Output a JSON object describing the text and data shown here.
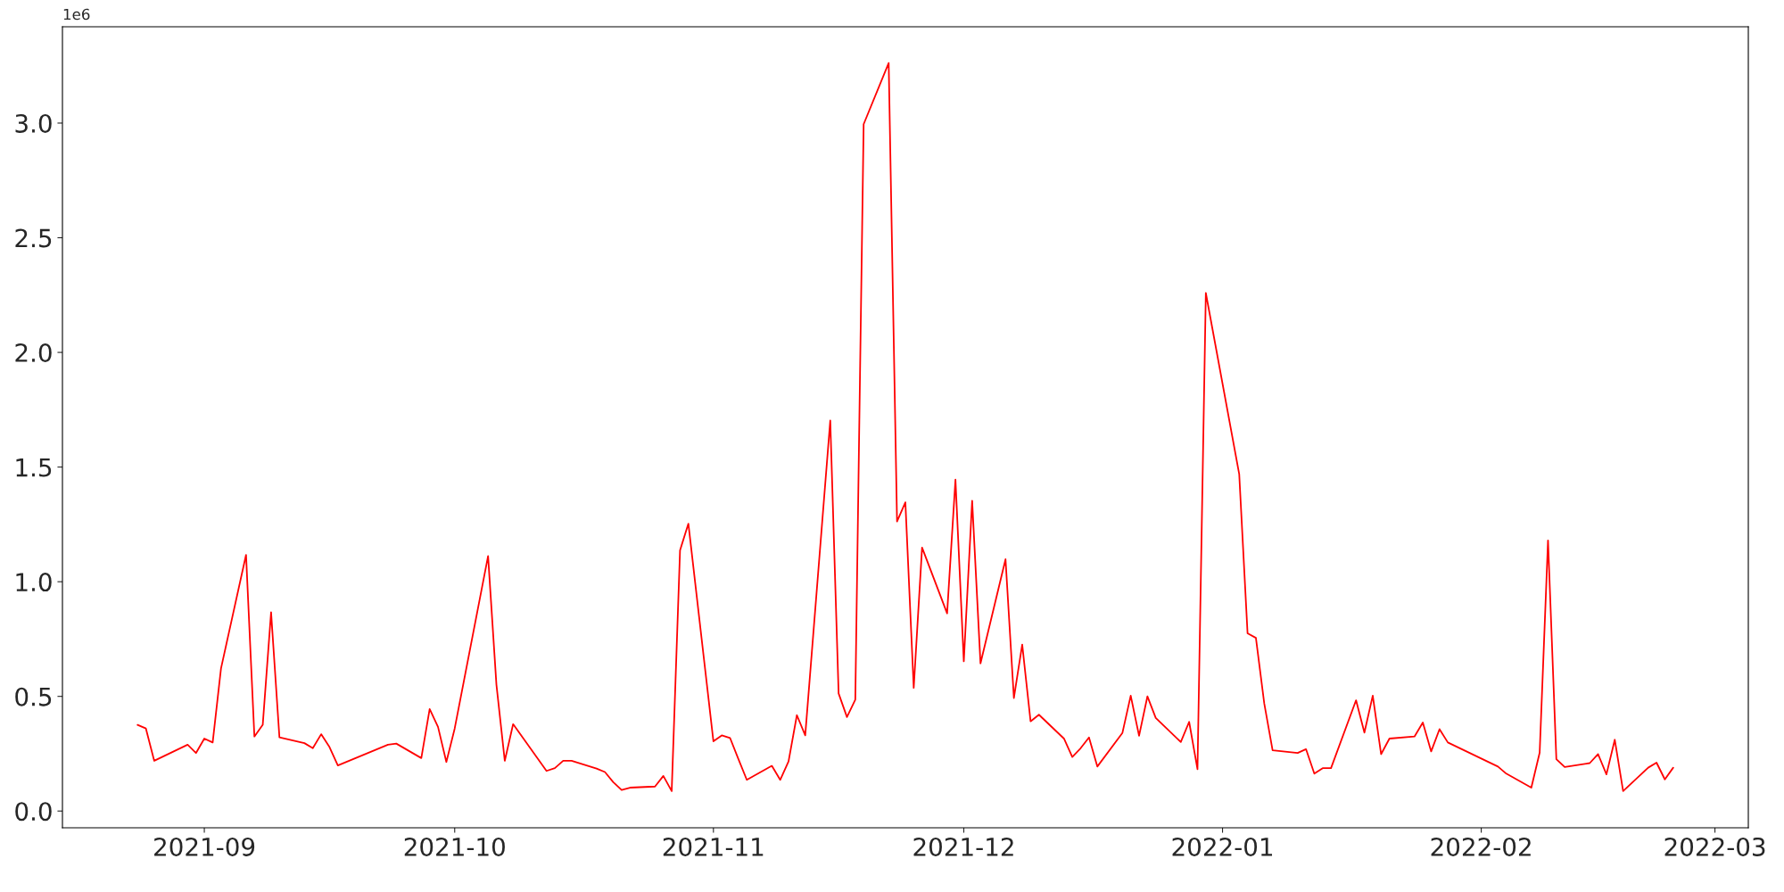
{
  "chart_data": {
    "type": "line",
    "annotations": [
      "1e6"
    ],
    "x": [
      "2021-08-24",
      "2021-08-25",
      "2021-08-26",
      "2021-08-30",
      "2021-08-31",
      "2021-09-01",
      "2021-09-02",
      "2021-09-03",
      "2021-09-06",
      "2021-09-07",
      "2021-09-08",
      "2021-09-09",
      "2021-09-10",
      "2021-09-13",
      "2021-09-14",
      "2021-09-15",
      "2021-09-16",
      "2021-09-17",
      "2021-09-23",
      "2021-09-24",
      "2021-09-27",
      "2021-09-28",
      "2021-09-29",
      "2021-09-30",
      "2021-10-01",
      "2021-10-05",
      "2021-10-06",
      "2021-10-07",
      "2021-10-08",
      "2021-10-12",
      "2021-10-13",
      "2021-10-14",
      "2021-10-15",
      "2021-10-18",
      "2021-10-19",
      "2021-10-20",
      "2021-10-21",
      "2021-10-22",
      "2021-10-25",
      "2021-10-26",
      "2021-10-27",
      "2021-10-28",
      "2021-10-29",
      "2021-11-01",
      "2021-11-02",
      "2021-11-03",
      "2021-11-04",
      "2021-11-05",
      "2021-11-08",
      "2021-11-09",
      "2021-11-10",
      "2021-11-11",
      "2021-11-12",
      "2021-11-15",
      "2021-11-16",
      "2021-11-17",
      "2021-11-18",
      "2021-11-19",
      "2021-11-22",
      "2021-11-23",
      "2021-11-24",
      "2021-11-25",
      "2021-11-26",
      "2021-11-29",
      "2021-11-30",
      "2021-12-01",
      "2021-12-02",
      "2021-12-03",
      "2021-12-06",
      "2021-12-07",
      "2021-12-08",
      "2021-12-09",
      "2021-12-10",
      "2021-12-13",
      "2021-12-14",
      "2021-12-15",
      "2021-12-16",
      "2021-12-17",
      "2021-12-20",
      "2021-12-21",
      "2021-12-22",
      "2021-12-23",
      "2021-12-24",
      "2021-12-27",
      "2021-12-28",
      "2021-12-29",
      "2021-12-30",
      "2022-01-03",
      "2022-01-04",
      "2022-01-05",
      "2022-01-06",
      "2022-01-07",
      "2022-01-10",
      "2022-01-11",
      "2022-01-12",
      "2022-01-13",
      "2022-01-14",
      "2022-01-17",
      "2022-01-18",
      "2022-01-19",
      "2022-01-20",
      "2022-01-21",
      "2022-01-24",
      "2022-01-25",
      "2022-01-26",
      "2022-01-27",
      "2022-01-28",
      "2022-02-03",
      "2022-02-04",
      "2022-02-07",
      "2022-02-08",
      "2022-02-09",
      "2022-02-10",
      "2022-02-11",
      "2022-02-14",
      "2022-02-15",
      "2022-02-16",
      "2022-02-17",
      "2022-02-18",
      "2022-02-21",
      "2022-02-22",
      "2022-02-23",
      "2022-02-24"
    ],
    "series": [
      {
        "color": "#ff0000",
        "values": [
          0.376,
          0.36,
          0.219,
          0.289,
          0.253,
          0.316,
          0.299,
          0.622,
          1.117,
          0.325,
          0.376,
          0.867,
          0.321,
          0.296,
          0.274,
          0.335,
          0.279,
          0.199,
          0.289,
          0.294,
          0.231,
          0.445,
          0.367,
          0.214,
          0.36,
          1.112,
          0.551,
          0.219,
          0.379,
          0.175,
          0.187,
          0.219,
          0.219,
          0.185,
          0.17,
          0.126,
          0.092,
          0.102,
          0.107,
          0.153,
          0.087,
          1.137,
          1.253,
          0.304,
          0.33,
          0.318,
          0.226,
          0.136,
          0.197,
          0.136,
          0.216,
          0.418,
          0.33,
          1.703,
          0.513,
          0.41,
          0.486,
          2.995,
          3.262,
          1.263,
          1.346,
          0.537,
          1.149,
          0.862,
          1.445,
          0.653,
          1.353,
          0.644,
          1.098,
          0.493,
          0.726,
          0.391,
          0.42,
          0.316,
          0.236,
          0.274,
          0.321,
          0.194,
          0.34,
          0.503,
          0.328,
          0.5,
          0.406,
          0.301,
          0.389,
          0.182,
          2.259,
          1.469,
          0.775,
          0.755,
          0.469,
          0.265,
          0.253,
          0.27,
          0.163,
          0.187,
          0.187,
          0.483,
          0.342,
          0.503,
          0.248,
          0.316,
          0.325,
          0.386,
          0.26,
          0.357,
          0.299,
          0.194,
          0.163,
          0.102,
          0.255,
          1.18,
          0.226,
          0.192,
          0.209,
          0.248,
          0.16,
          0.311,
          0.087,
          0.189,
          0.211,
          0.138,
          0.189
        ]
      }
    ],
    "xlim": [
      "2021-08-15",
      "2022-03-05"
    ],
    "ylim": [
      -0.073,
      3.42
    ],
    "xticks": [
      "2021-09",
      "2021-10",
      "2021-11",
      "2021-12",
      "2022-01",
      "2022-02",
      "2022-03"
    ],
    "yticks": [
      {
        "value": 0,
        "label": "0.0"
      },
      {
        "value": 0.5,
        "label": "0.5"
      },
      {
        "value": 1.0,
        "label": "1.0"
      },
      {
        "value": 1.5,
        "label": "1.5"
      },
      {
        "value": 2.0,
        "label": "2.0"
      },
      {
        "value": 2.5,
        "label": "2.5"
      },
      {
        "value": 3.0,
        "label": "3.0"
      }
    ],
    "grid": false,
    "marker": "none",
    "line_style": "solid"
  }
}
